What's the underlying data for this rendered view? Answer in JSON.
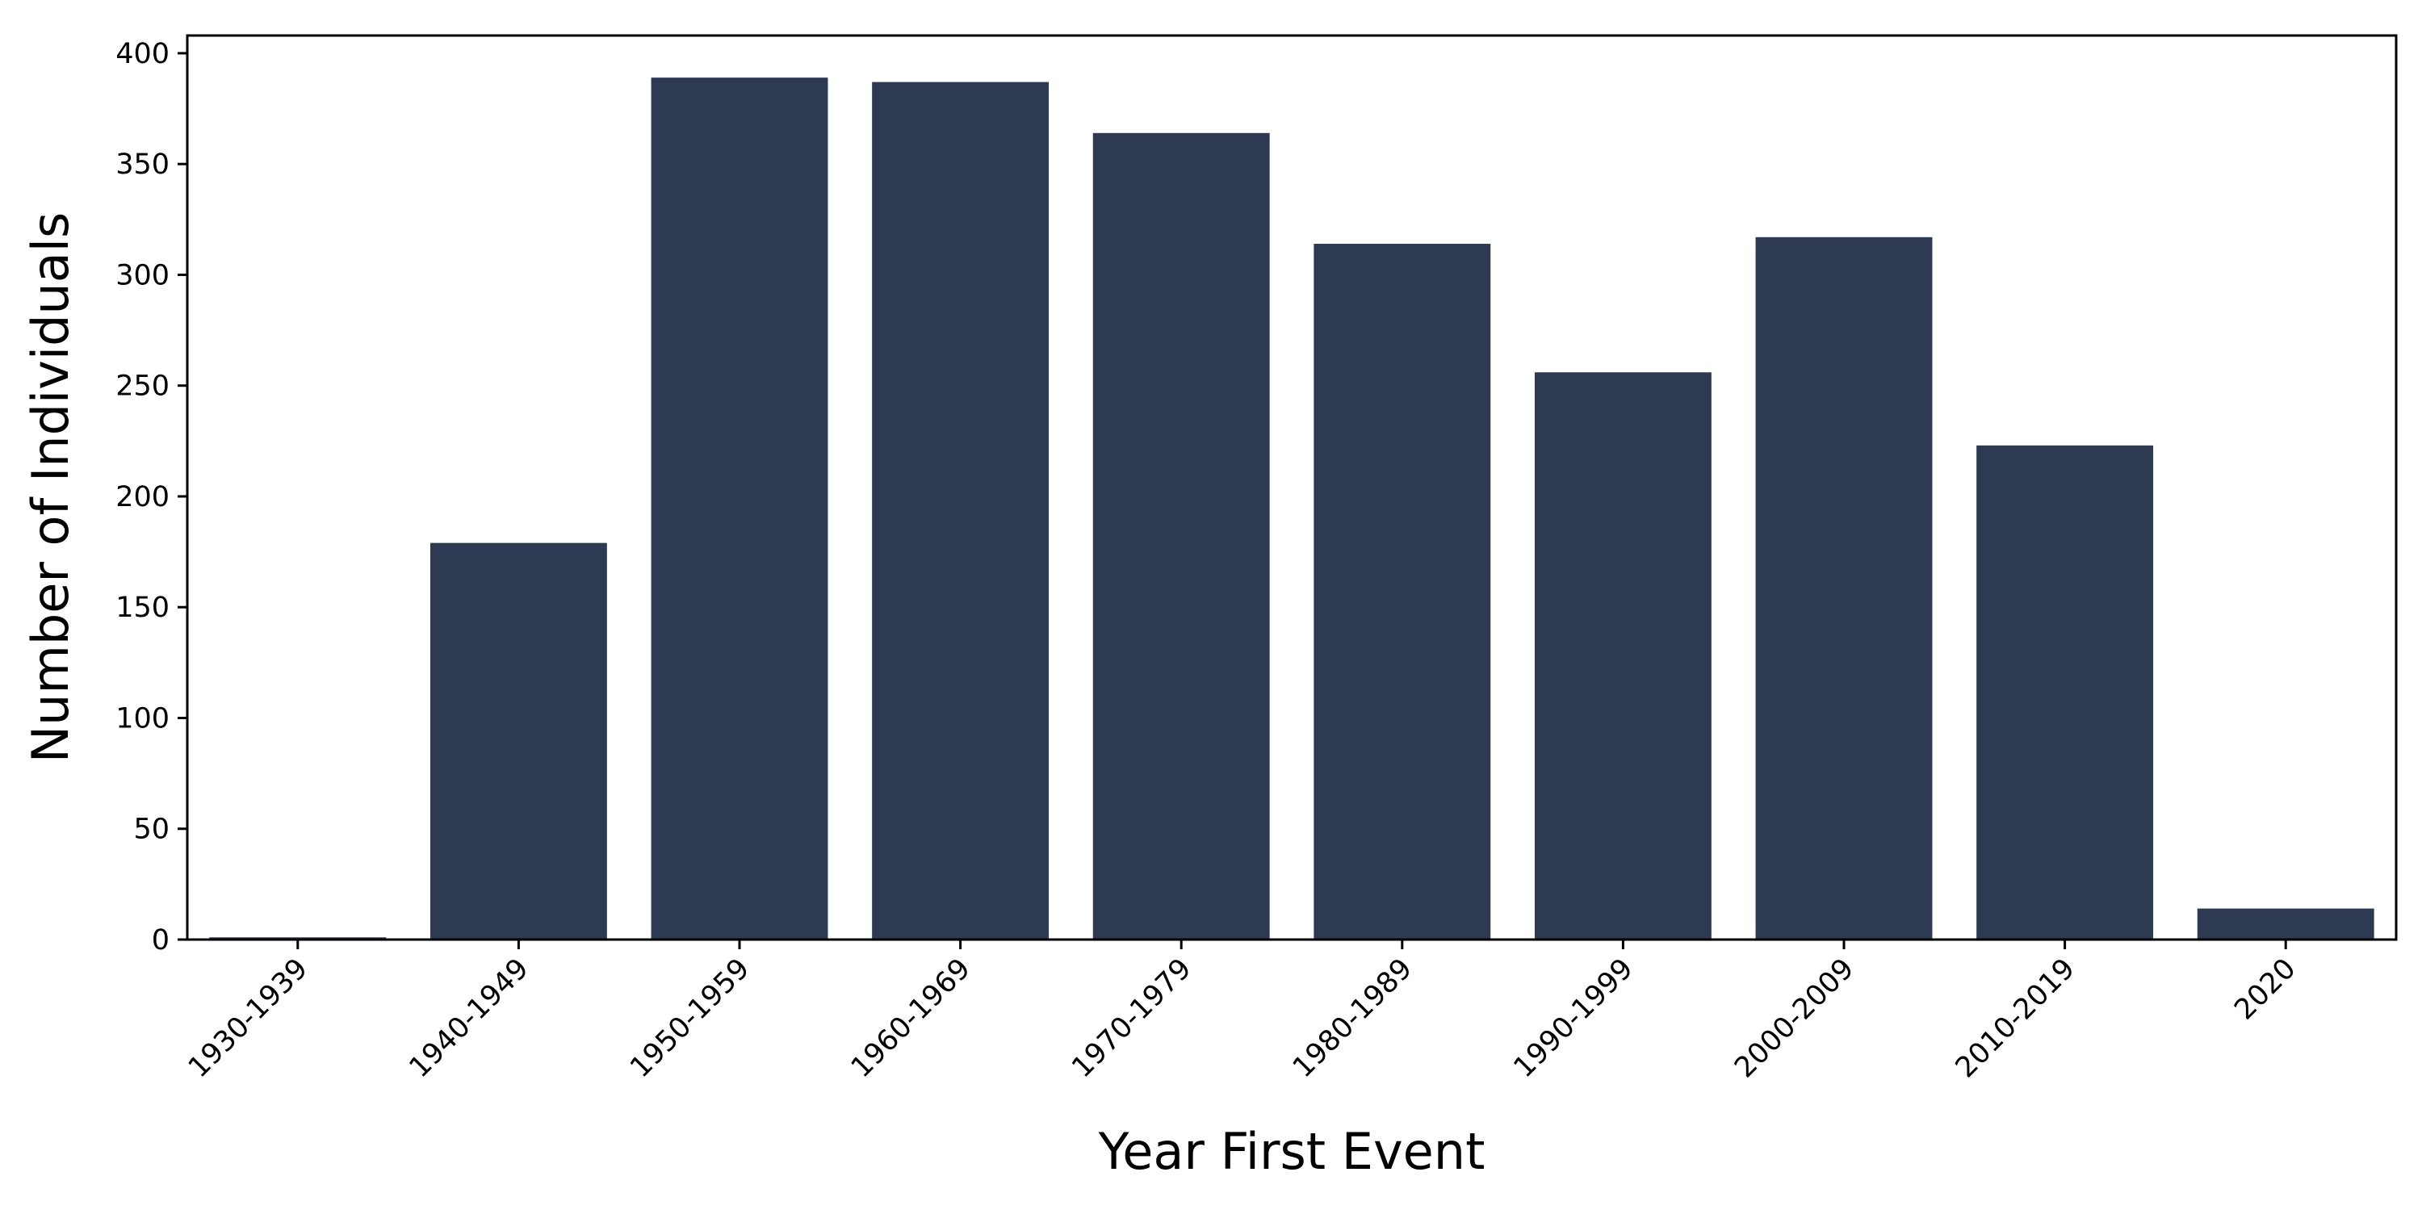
{
  "chart_data": {
    "type": "bar",
    "title": "",
    "xlabel": "Year First Event",
    "ylabel": "Number of Individuals",
    "categories": [
      "1930-1939",
      "1940-1949",
      "1950-1959",
      "1960-1969",
      "1970-1979",
      "1980-1989",
      "1990-1999",
      "2000-2009",
      "2010-2019",
      "2020"
    ],
    "values": [
      1,
      179,
      389,
      387,
      364,
      314,
      256,
      317,
      223,
      14
    ],
    "ylim": [
      0,
      408
    ],
    "yticks": [
      0,
      50,
      100,
      150,
      200,
      250,
      300,
      350,
      400
    ],
    "grid": false,
    "legend": "none",
    "bar_color": "#2e3a52"
  }
}
